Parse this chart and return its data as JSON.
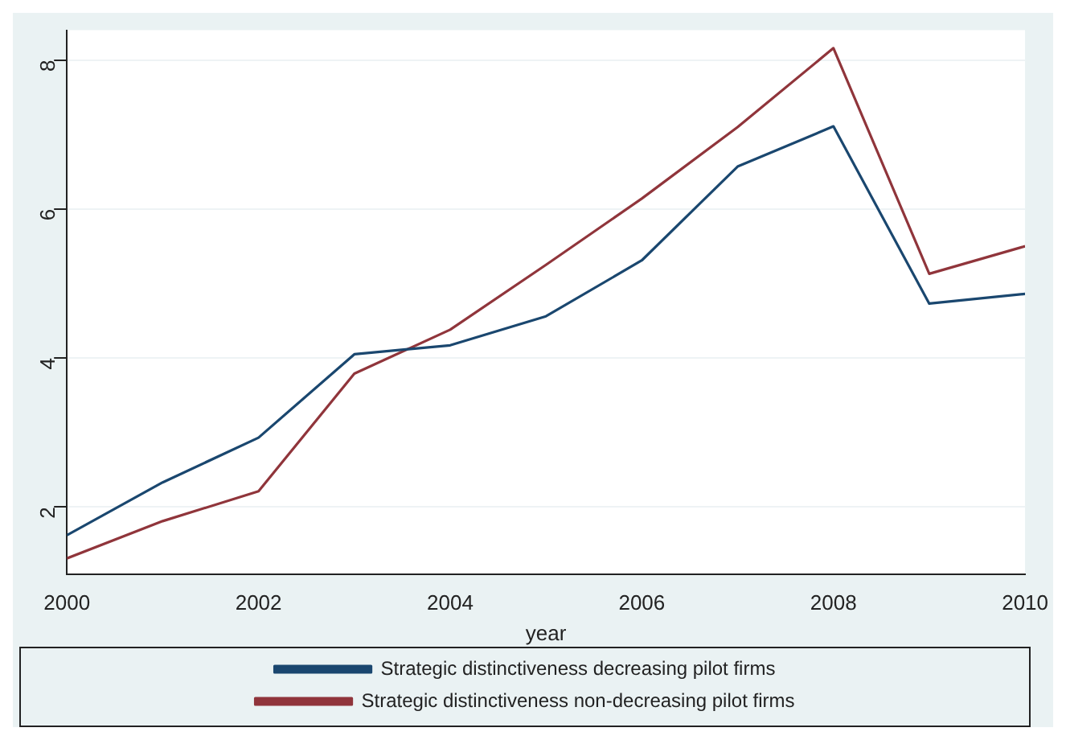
{
  "chart_data": {
    "type": "line",
    "xlabel": "year",
    "x": [
      2000,
      2001,
      2002,
      2003,
      2004,
      2005,
      2006,
      2007,
      2008,
      2009,
      2010
    ],
    "series": [
      {
        "name": "Strategic distinctiveness decreasing pilot firms",
        "color": "#1a476f",
        "values": [
          1.62,
          2.33,
          2.93,
          4.05,
          4.17,
          4.56,
          5.31,
          6.57,
          7.11,
          4.73,
          4.86
        ]
      },
      {
        "name": "Strategic distinctiveness non-decreasing pilot firms",
        "color": "#90353b",
        "values": [
          1.31,
          1.81,
          2.21,
          3.79,
          4.38,
          5.25,
          6.14,
          7.1,
          8.16,
          5.13,
          5.5
        ]
      }
    ],
    "xlim": [
      2000,
      2010
    ],
    "xticks": [
      2000,
      2002,
      2004,
      2006,
      2008,
      2010
    ],
    "ylim": [
      1.1,
      8.4
    ],
    "yticks": [
      2,
      4,
      6,
      8
    ],
    "grid": "y",
    "legend": "bottom",
    "marker": "none",
    "line_style": "solid"
  }
}
